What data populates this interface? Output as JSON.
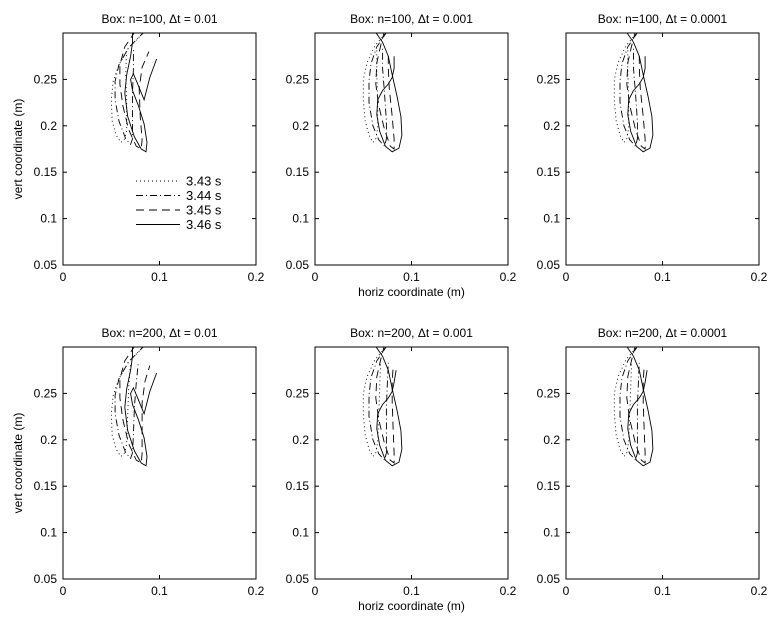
{
  "chart_data": [
    {
      "type": "line",
      "title": "Box: n=100, Δt = 0.01",
      "xlabel": "",
      "ylabel": "vert coordinate (m)",
      "xlim": [
        0,
        0.2
      ],
      "ylim": [
        0.05,
        0.3
      ],
      "xticks": [
        "0",
        "0.1",
        "0.2"
      ],
      "yticks": [
        "0.05",
        "0.1",
        "0.15",
        "0.2",
        "0.25"
      ],
      "legend": true,
      "legend_position": "inside-lower-right",
      "series": [
        {
          "name": "3.43 s",
          "x": [
            0.085,
            0.068,
            0.058,
            0.052,
            0.05,
            0.051,
            0.055,
            0.06,
            0.064,
            0.066,
            0.066,
            0.065,
            0.066
          ],
          "y": [
            0.302,
            0.284,
            0.266,
            0.248,
            0.228,
            0.205,
            0.19,
            0.182,
            0.186,
            0.196,
            0.226,
            0.255,
            0.283
          ]
        },
        {
          "name": "3.44 s",
          "x": [
            0.085,
            0.068,
            0.058,
            0.054,
            0.054,
            0.058,
            0.065,
            0.07,
            0.072,
            0.072,
            0.072,
            0.073,
            0.073
          ],
          "y": [
            0.302,
            0.284,
            0.266,
            0.248,
            0.228,
            0.205,
            0.186,
            0.18,
            0.186,
            0.205,
            0.235,
            0.262,
            0.283
          ]
        },
        {
          "name": "3.45 s",
          "x": [
            0.075,
            0.064,
            0.059,
            0.059,
            0.062,
            0.068,
            0.076,
            0.081,
            0.082,
            0.08,
            0.079,
            0.082,
            0.089
          ],
          "y": [
            0.302,
            0.285,
            0.266,
            0.245,
            0.222,
            0.196,
            0.178,
            0.175,
            0.185,
            0.21,
            0.24,
            0.263,
            0.28
          ]
        },
        {
          "name": "3.46 s",
          "x": [
            0.072,
            0.072,
            0.07,
            0.066,
            0.064,
            0.067,
            0.074,
            0.081,
            0.086,
            0.087,
            0.084,
            0.078,
            0.072,
            0.07,
            0.073,
            0.077,
            0.084,
            0.09,
            0.097
          ],
          "y": [
            0.302,
            0.29,
            0.275,
            0.255,
            0.235,
            0.21,
            0.188,
            0.175,
            0.172,
            0.182,
            0.202,
            0.222,
            0.238,
            0.25,
            0.256,
            0.246,
            0.228,
            0.252,
            0.272
          ]
        }
      ]
    },
    {
      "type": "line",
      "title": "Box: n=100, Δt = 0.001",
      "xlabel": "horiz coordinate (m)",
      "ylabel": "",
      "xlim": [
        0,
        0.2
      ],
      "ylim": [
        0.05,
        0.3
      ],
      "xticks": [
        "0",
        "0.1",
        "0.2"
      ],
      "yticks": [
        "0.05",
        "0.1",
        "0.15",
        "0.2",
        "0.25"
      ],
      "legend": false,
      "series": [
        {
          "name": "3.43 s",
          "x": [
            0.075,
            0.062,
            0.054,
            0.05,
            0.05,
            0.052,
            0.056,
            0.06,
            0.063,
            0.065,
            0.065,
            0.064,
            0.064
          ],
          "y": [
            0.302,
            0.286,
            0.268,
            0.25,
            0.228,
            0.205,
            0.19,
            0.182,
            0.186,
            0.198,
            0.228,
            0.256,
            0.283
          ]
        },
        {
          "name": "3.44 s",
          "x": [
            0.075,
            0.064,
            0.058,
            0.056,
            0.056,
            0.06,
            0.066,
            0.072,
            0.074,
            0.074,
            0.072,
            0.07,
            0.07
          ],
          "y": [
            0.302,
            0.285,
            0.267,
            0.248,
            0.225,
            0.2,
            0.185,
            0.178,
            0.186,
            0.205,
            0.235,
            0.262,
            0.283
          ]
        },
        {
          "name": "3.45 s",
          "x": [
            0.072,
            0.068,
            0.064,
            0.063,
            0.066,
            0.072,
            0.078,
            0.082,
            0.082,
            0.08,
            0.077,
            0.076,
            0.076
          ],
          "y": [
            0.302,
            0.286,
            0.268,
            0.245,
            0.222,
            0.196,
            0.178,
            0.175,
            0.186,
            0.21,
            0.24,
            0.262,
            0.28
          ]
        },
        {
          "name": "3.46 s",
          "x": [
            0.062,
            0.07,
            0.076,
            0.08,
            0.085,
            0.089,
            0.09,
            0.087,
            0.08,
            0.073,
            0.067,
            0.064,
            0.065,
            0.07,
            0.076,
            0.08,
            0.082,
            0.082
          ],
          "y": [
            0.302,
            0.29,
            0.275,
            0.255,
            0.232,
            0.21,
            0.19,
            0.176,
            0.172,
            0.178,
            0.194,
            0.212,
            0.228,
            0.238,
            0.245,
            0.252,
            0.262,
            0.275
          ]
        }
      ]
    },
    {
      "type": "line",
      "title": "Box: n=100, Δt = 0.0001",
      "xlabel": "",
      "ylabel": "",
      "xlim": [
        0,
        0.2
      ],
      "ylim": [
        0.05,
        0.3
      ],
      "xticks": [
        "0",
        "0.1",
        "0.2"
      ],
      "yticks": [
        "0.05",
        "0.1",
        "0.15",
        "0.2",
        "0.25"
      ],
      "legend": false,
      "series": [
        {
          "name": "3.43 s",
          "x": [
            0.075,
            0.062,
            0.054,
            0.05,
            0.05,
            0.052,
            0.056,
            0.06,
            0.063,
            0.065,
            0.065,
            0.064,
            0.064
          ],
          "y": [
            0.302,
            0.286,
            0.268,
            0.25,
            0.228,
            0.205,
            0.19,
            0.182,
            0.186,
            0.198,
            0.228,
            0.256,
            0.283
          ]
        },
        {
          "name": "3.44 s",
          "x": [
            0.075,
            0.064,
            0.058,
            0.056,
            0.056,
            0.06,
            0.066,
            0.072,
            0.074,
            0.074,
            0.072,
            0.07,
            0.07
          ],
          "y": [
            0.302,
            0.285,
            0.267,
            0.248,
            0.225,
            0.2,
            0.185,
            0.178,
            0.186,
            0.205,
            0.235,
            0.262,
            0.283
          ]
        },
        {
          "name": "3.45 s",
          "x": [
            0.072,
            0.068,
            0.064,
            0.063,
            0.066,
            0.072,
            0.078,
            0.082,
            0.082,
            0.08,
            0.077,
            0.076,
            0.076
          ],
          "y": [
            0.302,
            0.286,
            0.268,
            0.245,
            0.222,
            0.196,
            0.178,
            0.175,
            0.186,
            0.21,
            0.24,
            0.262,
            0.28
          ]
        },
        {
          "name": "3.46 s",
          "x": [
            0.062,
            0.07,
            0.076,
            0.08,
            0.085,
            0.089,
            0.09,
            0.087,
            0.08,
            0.073,
            0.067,
            0.064,
            0.065,
            0.07,
            0.076,
            0.08,
            0.082,
            0.082
          ],
          "y": [
            0.302,
            0.29,
            0.275,
            0.255,
            0.232,
            0.21,
            0.19,
            0.176,
            0.172,
            0.178,
            0.194,
            0.212,
            0.228,
            0.238,
            0.245,
            0.252,
            0.262,
            0.275
          ]
        }
      ]
    },
    {
      "type": "line",
      "title": "Box: n=200, Δt = 0.01",
      "xlabel": "",
      "ylabel": "vert coordinate (m)",
      "xlim": [
        0,
        0.2
      ],
      "ylim": [
        0.05,
        0.3
      ],
      "xticks": [
        "0",
        "0.1",
        "0.2"
      ],
      "yticks": [
        "0.05",
        "0.1",
        "0.15",
        "0.2",
        "0.25"
      ],
      "legend": false,
      "series": [
        {
          "name": "3.43 s",
          "x": [
            0.085,
            0.068,
            0.058,
            0.052,
            0.05,
            0.051,
            0.055,
            0.06,
            0.064,
            0.066,
            0.067,
            0.068,
            0.07
          ],
          "y": [
            0.302,
            0.284,
            0.266,
            0.248,
            0.228,
            0.205,
            0.19,
            0.182,
            0.186,
            0.196,
            0.226,
            0.255,
            0.283
          ]
        },
        {
          "name": "3.44 s",
          "x": [
            0.085,
            0.068,
            0.058,
            0.054,
            0.054,
            0.058,
            0.065,
            0.07,
            0.072,
            0.073,
            0.074,
            0.076,
            0.078
          ],
          "y": [
            0.302,
            0.284,
            0.266,
            0.248,
            0.228,
            0.205,
            0.186,
            0.18,
            0.186,
            0.205,
            0.235,
            0.262,
            0.283
          ]
        },
        {
          "name": "3.45 s",
          "x": [
            0.075,
            0.064,
            0.059,
            0.059,
            0.062,
            0.068,
            0.076,
            0.081,
            0.082,
            0.082,
            0.082,
            0.085,
            0.09
          ],
          "y": [
            0.302,
            0.285,
            0.266,
            0.245,
            0.222,
            0.196,
            0.178,
            0.175,
            0.185,
            0.21,
            0.24,
            0.263,
            0.28
          ]
        },
        {
          "name": "3.46 s",
          "x": [
            0.072,
            0.072,
            0.07,
            0.066,
            0.064,
            0.067,
            0.074,
            0.081,
            0.086,
            0.087,
            0.084,
            0.078,
            0.072,
            0.07,
            0.073,
            0.077,
            0.084,
            0.09,
            0.097
          ],
          "y": [
            0.302,
            0.29,
            0.275,
            0.255,
            0.235,
            0.21,
            0.188,
            0.175,
            0.172,
            0.182,
            0.202,
            0.222,
            0.238,
            0.25,
            0.256,
            0.246,
            0.228,
            0.252,
            0.272
          ]
        }
      ]
    },
    {
      "type": "line",
      "title": "Box: n=200, Δt = 0.001",
      "xlabel": "horiz coordinate (m)",
      "ylabel": "",
      "xlim": [
        0,
        0.2
      ],
      "ylim": [
        0.05,
        0.3
      ],
      "xticks": [
        "0",
        "0.1",
        "0.2"
      ],
      "yticks": [
        "0.05",
        "0.1",
        "0.15",
        "0.2",
        "0.25"
      ],
      "legend": false,
      "series": [
        {
          "name": "3.43 s",
          "x": [
            0.075,
            0.062,
            0.054,
            0.05,
            0.05,
            0.052,
            0.056,
            0.06,
            0.063,
            0.065,
            0.066,
            0.067,
            0.068
          ],
          "y": [
            0.302,
            0.286,
            0.268,
            0.25,
            0.228,
            0.205,
            0.19,
            0.182,
            0.186,
            0.198,
            0.228,
            0.256,
            0.283
          ]
        },
        {
          "name": "3.44 s",
          "x": [
            0.075,
            0.064,
            0.058,
            0.056,
            0.056,
            0.06,
            0.066,
            0.072,
            0.074,
            0.074,
            0.074,
            0.075,
            0.076
          ],
          "y": [
            0.302,
            0.285,
            0.267,
            0.248,
            0.225,
            0.2,
            0.185,
            0.178,
            0.186,
            0.205,
            0.235,
            0.262,
            0.283
          ]
        },
        {
          "name": "3.45 s",
          "x": [
            0.072,
            0.068,
            0.064,
            0.063,
            0.066,
            0.072,
            0.078,
            0.082,
            0.082,
            0.081,
            0.08,
            0.08,
            0.081
          ],
          "y": [
            0.302,
            0.286,
            0.268,
            0.245,
            0.222,
            0.196,
            0.178,
            0.175,
            0.186,
            0.21,
            0.24,
            0.262,
            0.28
          ]
        },
        {
          "name": "3.46 s",
          "x": [
            0.062,
            0.07,
            0.076,
            0.08,
            0.085,
            0.089,
            0.09,
            0.087,
            0.08,
            0.073,
            0.067,
            0.064,
            0.065,
            0.07,
            0.076,
            0.08,
            0.082,
            0.084
          ],
          "y": [
            0.302,
            0.29,
            0.275,
            0.255,
            0.232,
            0.21,
            0.19,
            0.176,
            0.172,
            0.178,
            0.194,
            0.212,
            0.228,
            0.238,
            0.245,
            0.252,
            0.262,
            0.275
          ]
        }
      ]
    },
    {
      "type": "line",
      "title": "Box: n=200, Δt = 0.0001",
      "xlabel": "",
      "ylabel": "",
      "xlim": [
        0,
        0.2
      ],
      "ylim": [
        0.05,
        0.3
      ],
      "xticks": [
        "0",
        "0.1",
        "0.2"
      ],
      "yticks": [
        "0.05",
        "0.1",
        "0.15",
        "0.2",
        "0.25"
      ],
      "legend": false,
      "series": [
        {
          "name": "3.43 s",
          "x": [
            0.075,
            0.062,
            0.054,
            0.05,
            0.05,
            0.052,
            0.056,
            0.06,
            0.063,
            0.065,
            0.066,
            0.067,
            0.068
          ],
          "y": [
            0.302,
            0.286,
            0.268,
            0.25,
            0.228,
            0.205,
            0.19,
            0.182,
            0.186,
            0.198,
            0.228,
            0.256,
            0.283
          ]
        },
        {
          "name": "3.44 s",
          "x": [
            0.075,
            0.064,
            0.058,
            0.056,
            0.056,
            0.06,
            0.066,
            0.072,
            0.074,
            0.074,
            0.074,
            0.075,
            0.076
          ],
          "y": [
            0.302,
            0.285,
            0.267,
            0.248,
            0.225,
            0.2,
            0.185,
            0.178,
            0.186,
            0.205,
            0.235,
            0.262,
            0.283
          ]
        },
        {
          "name": "3.45 s",
          "x": [
            0.072,
            0.068,
            0.064,
            0.063,
            0.066,
            0.072,
            0.078,
            0.082,
            0.082,
            0.081,
            0.08,
            0.08,
            0.081
          ],
          "y": [
            0.302,
            0.286,
            0.268,
            0.245,
            0.222,
            0.196,
            0.178,
            0.175,
            0.186,
            0.21,
            0.24,
            0.262,
            0.28
          ]
        },
        {
          "name": "3.46 s",
          "x": [
            0.062,
            0.07,
            0.076,
            0.08,
            0.085,
            0.089,
            0.09,
            0.087,
            0.08,
            0.073,
            0.067,
            0.064,
            0.065,
            0.07,
            0.076,
            0.08,
            0.082,
            0.084
          ],
          "y": [
            0.302,
            0.29,
            0.275,
            0.255,
            0.232,
            0.21,
            0.19,
            0.176,
            0.172,
            0.178,
            0.194,
            0.212,
            0.228,
            0.238,
            0.245,
            0.252,
            0.262,
            0.275
          ]
        }
      ]
    }
  ]
}
